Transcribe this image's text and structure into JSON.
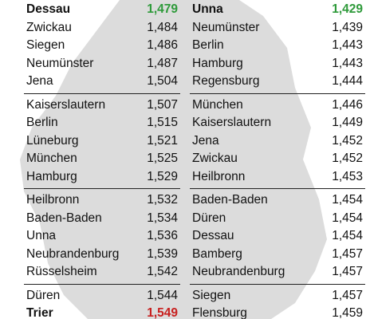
{
  "columns": [
    {
      "groups": [
        [
          {
            "city": "Dessau",
            "price": "1,479",
            "color": "#2e9a3a"
          },
          {
            "city": "Zwickau",
            "price": "1,484"
          },
          {
            "city": "Siegen",
            "price": "1,486"
          },
          {
            "city": "Neumünster",
            "price": "1,487"
          },
          {
            "city": "Jena",
            "price": "1,504"
          }
        ],
        [
          {
            "city": "Kaiserslautern",
            "price": "1,507"
          },
          {
            "city": "Berlin",
            "price": "1,515"
          },
          {
            "city": "Lüneburg",
            "price": "1,521"
          },
          {
            "city": "München",
            "price": "1,525"
          },
          {
            "city": "Hamburg",
            "price": "1,529"
          }
        ],
        [
          {
            "city": "Heilbronn",
            "price": "1,532"
          },
          {
            "city": "Baden-Baden",
            "price": "1,534"
          },
          {
            "city": "Unna",
            "price": "1,536"
          },
          {
            "city": "Neubrandenburg",
            "price": "1,539"
          },
          {
            "city": "Rüsselsheim",
            "price": "1,542"
          }
        ],
        [
          {
            "city": "Düren",
            "price": "1,544"
          },
          {
            "city": "Trier",
            "price": "1,549",
            "color": "#c8201f"
          }
        ]
      ]
    },
    {
      "groups": [
        [
          {
            "city": "Unna",
            "price": "1,429",
            "color": "#2e9a3a"
          },
          {
            "city": "Neumünster",
            "price": "1,439"
          },
          {
            "city": "Berlin",
            "price": "1,443"
          },
          {
            "city": "Hamburg",
            "price": "1,443"
          },
          {
            "city": "Regensburg",
            "price": "1,444"
          }
        ],
        [
          {
            "city": "München",
            "price": "1,446"
          },
          {
            "city": "Kaiserslautern",
            "price": "1,449"
          },
          {
            "city": "Jena",
            "price": "1,452"
          },
          {
            "city": "Zwickau",
            "price": "1,452"
          },
          {
            "city": "Heilbronn",
            "price": "1,453"
          }
        ],
        [
          {
            "city": "Baden-Baden",
            "price": "1,454"
          },
          {
            "city": "Düren",
            "price": "1,454"
          },
          {
            "city": "Dessau",
            "price": "1,454"
          },
          {
            "city": "Bamberg",
            "price": "1,457"
          },
          {
            "city": "Neubrandenburg",
            "price": "1,457"
          }
        ],
        [
          {
            "city": "Siegen",
            "price": "1,457"
          },
          {
            "city": "Flensburg",
            "price": "1,459"
          }
        ]
      ]
    }
  ]
}
